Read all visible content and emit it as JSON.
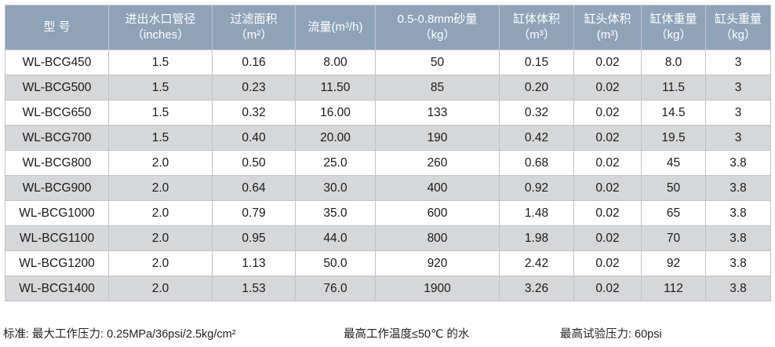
{
  "table": {
    "headers": [
      {
        "line1": "型  号",
        "line2": ""
      },
      {
        "line1": "进出水口管径",
        "line2": "（inches）"
      },
      {
        "line1": "过滤面积",
        "line2": "（m²）"
      },
      {
        "line1": "流量(m³/h)",
        "line2": ""
      },
      {
        "line1": "0.5-0.8mm砂量",
        "line2": "（kg）"
      },
      {
        "line1": "缸体体积",
        "line2": "（m³）"
      },
      {
        "line1": "缸头体积",
        "line2": "(m³)"
      },
      {
        "line1": "缸体重量",
        "line2": "（kg）"
      },
      {
        "line1": "缸头重量",
        "line2": "（kg）"
      }
    ],
    "rows": [
      [
        "WL-BCG450",
        "1.5",
        "0.16",
        "8.00",
        "50",
        "0.15",
        "0.02",
        "8.0",
        "3"
      ],
      [
        "WL-BCG500",
        "1.5",
        "0.23",
        "11.50",
        "85",
        "0.20",
        "0.02",
        "11.5",
        "3"
      ],
      [
        "WL-BCG650",
        "1.5",
        "0.32",
        "16.00",
        "133",
        "0.32",
        "0.02",
        "14.5",
        "3"
      ],
      [
        "WL-BCG700",
        "1.5",
        "0.40",
        "20.00",
        "190",
        "0.42",
        "0.02",
        "19.5",
        "3"
      ],
      [
        "WL-BCG800",
        "2.0",
        "0.50",
        "25.0",
        "260",
        "0.68",
        "0.02",
        "45",
        "3.8"
      ],
      [
        "WL-BCG900",
        "2.0",
        "0.64",
        "30.0",
        "400",
        "0.92",
        "0.02",
        "50",
        "3.8"
      ],
      [
        "WL-BCG1000",
        "2.0",
        "0.79",
        "35.0",
        "600",
        "1.48",
        "0.02",
        "65",
        "3.8"
      ],
      [
        "WL-BCG1100",
        "2.0",
        "0.95",
        "44.0",
        "800",
        "1.98",
        "0.02",
        "70",
        "3.8"
      ],
      [
        "WL-BCG1200",
        "2.0",
        "1.13",
        "50.0",
        "920",
        "2.42",
        "0.02",
        "92",
        "3.8"
      ],
      [
        "WL-BCG1400",
        "2.0",
        "1.53",
        "76.0",
        "1900",
        "3.26",
        "0.02",
        "112",
        "3.8"
      ]
    ]
  },
  "footer": {
    "standard": "标准: 最大工作压力: 0.25MPa/36psi/2.5kg/cm²",
    "temperature": "最高工作温度≤50℃ 的水",
    "test_pressure": "最高试验压力: 60psi"
  },
  "colors": {
    "header_bg": "#8ea3b8",
    "header_text": "#ffffff",
    "row_alt_bg": "#d6d7d9",
    "border": "#bfc3c8"
  }
}
